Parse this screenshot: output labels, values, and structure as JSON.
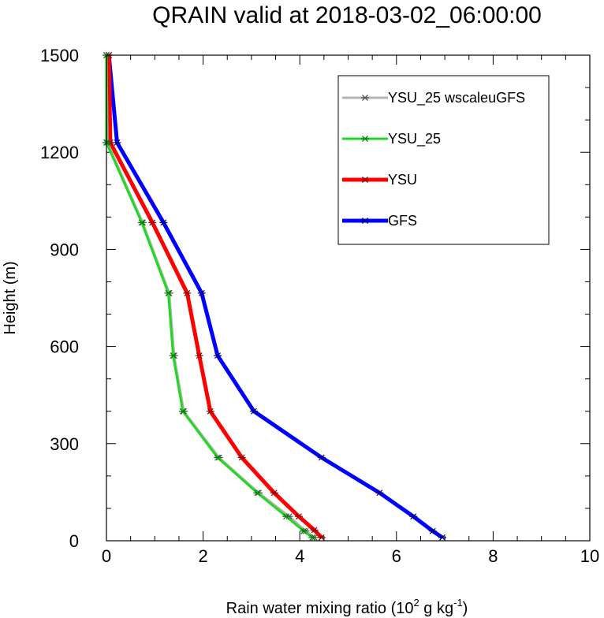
{
  "chart_data": {
    "type": "line",
    "title": "QRAIN valid at 2018-03-02_06:00:00",
    "xlabel": {
      "main": "Rain water mixing ratio (10",
      "sup1": "2",
      "mid": " g kg",
      "sup2": "-1",
      "end": ")"
    },
    "ylabel": "Height (m)",
    "xlim": [
      0,
      10
    ],
    "ylim": [
      0,
      1500
    ],
    "xticks": [
      0,
      2,
      4,
      6,
      8,
      10
    ],
    "yticks": [
      0,
      300,
      600,
      900,
      1200,
      1500
    ],
    "xtick_labels": [
      "0",
      "2",
      "4",
      "6",
      "8",
      "10"
    ],
    "ytick_labels": [
      "0",
      "300",
      "600",
      "900",
      "1200",
      "1500"
    ],
    "x_minor_step": 0.5,
    "y_minor_step": 100,
    "legend_position": "top-right",
    "series": [
      {
        "name": "YSU_25 wscaleuGFS",
        "color": "#b4b4b4",
        "marker_color": "#505050",
        "points": [
          [
            4.3,
            10
          ],
          [
            4.12,
            30
          ],
          [
            3.78,
            75
          ],
          [
            3.15,
            148
          ],
          [
            2.33,
            257
          ],
          [
            1.6,
            400
          ],
          [
            1.4,
            572
          ],
          [
            1.3,
            765
          ],
          [
            0.75,
            983
          ],
          [
            0.02,
            1230
          ],
          [
            0.0,
            1500
          ]
        ]
      },
      {
        "name": "YSU_25",
        "color": "#22d822",
        "marker_color": "#0f7a0f",
        "points": [
          [
            4.26,
            10
          ],
          [
            4.08,
            30
          ],
          [
            3.72,
            75
          ],
          [
            3.12,
            148
          ],
          [
            2.3,
            257
          ],
          [
            1.58,
            400
          ],
          [
            1.38,
            572
          ],
          [
            1.28,
            765
          ],
          [
            0.73,
            983
          ],
          [
            0.0,
            1230
          ],
          [
            0.0,
            1500
          ]
        ]
      },
      {
        "name": "YSU",
        "color": "#ff0000",
        "marker_color": "#8a0000",
        "points": [
          [
            4.45,
            10
          ],
          [
            4.3,
            33
          ],
          [
            3.98,
            75
          ],
          [
            3.47,
            148
          ],
          [
            2.8,
            257
          ],
          [
            2.15,
            400
          ],
          [
            1.92,
            572
          ],
          [
            1.67,
            765
          ],
          [
            0.95,
            983
          ],
          [
            0.08,
            1230
          ],
          [
            0.05,
            1500
          ]
        ]
      },
      {
        "name": "GFS",
        "color": "#0000ff",
        "marker_color": "#00007a",
        "points": [
          [
            6.95,
            10
          ],
          [
            6.75,
            30
          ],
          [
            6.35,
            75
          ],
          [
            5.65,
            148
          ],
          [
            4.45,
            257
          ],
          [
            3.05,
            400
          ],
          [
            2.3,
            572
          ],
          [
            1.97,
            765
          ],
          [
            1.18,
            983
          ],
          [
            0.22,
            1230
          ],
          [
            0.05,
            1500
          ]
        ]
      }
    ]
  }
}
